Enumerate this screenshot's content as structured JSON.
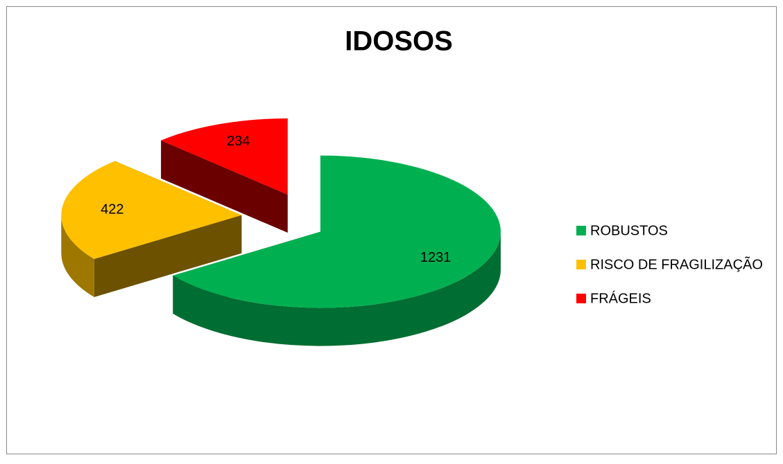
{
  "chart_data": {
    "type": "pie",
    "title": "IDOSOS",
    "categories": [
      "ROBUSTOS",
      "RISCO DE FRAGILIZAÇÃO",
      "FRÁGEIS"
    ],
    "values": [
      1231,
      422,
      234
    ],
    "colors": [
      "#00b050",
      "#ffc000",
      "#ff0000"
    ],
    "legend": "right"
  }
}
